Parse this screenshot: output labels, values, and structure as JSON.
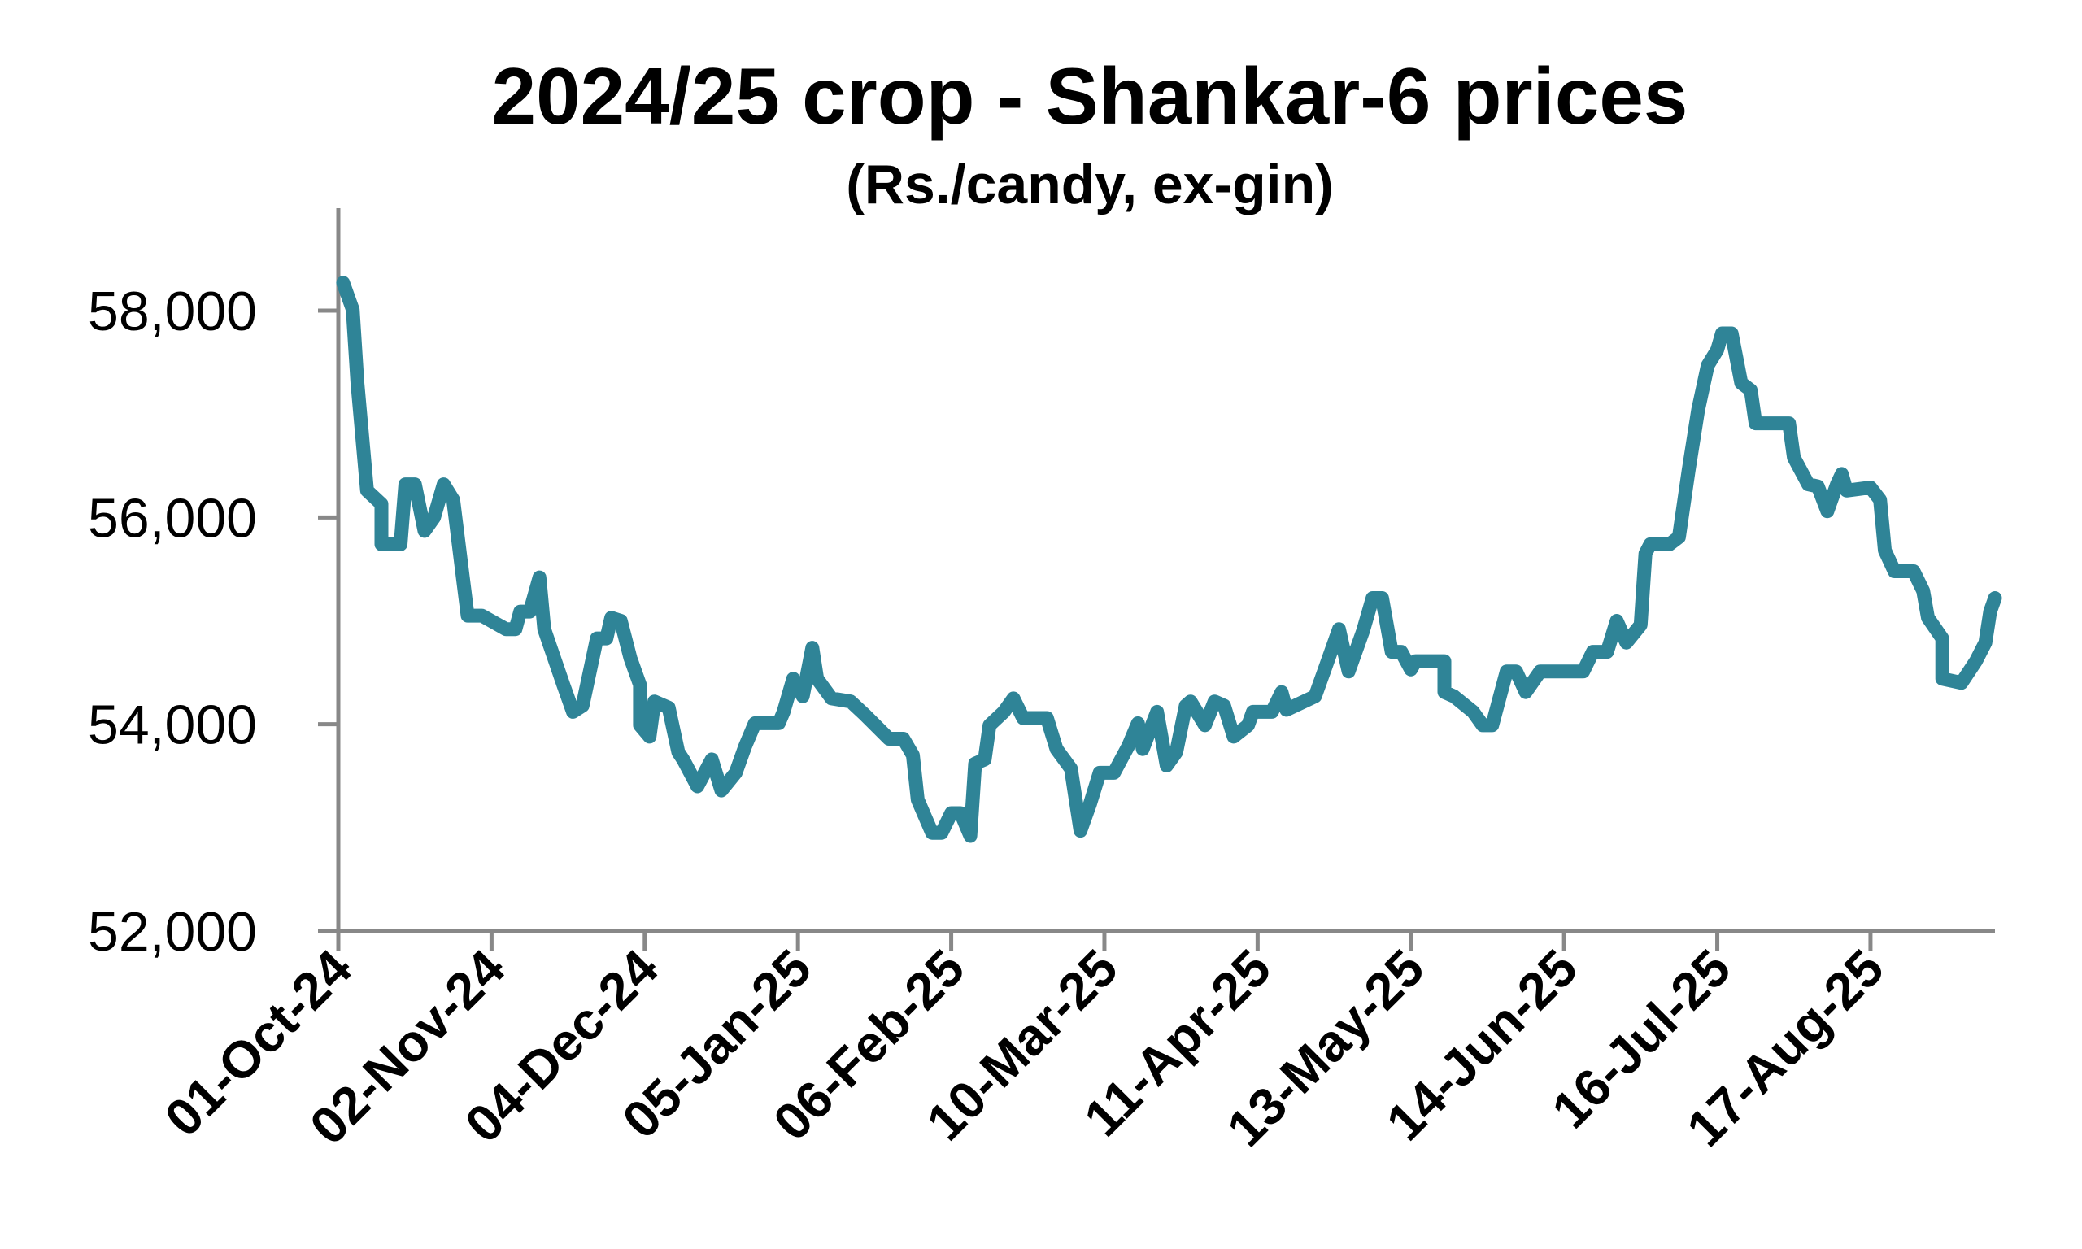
{
  "chart_data": {
    "type": "line",
    "title": "2024/25 crop - Shankar-6 prices",
    "subtitle": "(Rs./candy, ex-gin)",
    "xlabel": "",
    "ylabel": "",
    "ylim": [
      52000,
      58000
    ],
    "yticks": [
      52000,
      54000,
      56000,
      58000
    ],
    "ytick_labels": [
      "52,000",
      "54,000",
      "56,000",
      "58,000"
    ],
    "x_unit": "days since 01-Oct-24",
    "xlim": [
      0,
      346
    ],
    "xticks": [
      0,
      32,
      64,
      96,
      128,
      160,
      192,
      224,
      256,
      288,
      320
    ],
    "xtick_labels": [
      "01-Oct-24",
      "02-Nov-24",
      "04-Dec-24",
      "05-Jan-25",
      "06-Feb-25",
      "10-Mar-25",
      "11-Apr-25",
      "13-May-25",
      "14-Jun-25",
      "16-Jul-25",
      "17-Aug-25"
    ],
    "grid": false,
    "legend": "none",
    "color": "#2f8497",
    "series": [
      {
        "name": "Shankar-6",
        "x": [
          1,
          3,
          4,
          6,
          9,
          9,
          13,
          14,
          16,
          18,
          20,
          22,
          24,
          26,
          27,
          30,
          35,
          37,
          38,
          40,
          42,
          43,
          47,
          49,
          51,
          54,
          56,
          57,
          59,
          61,
          63,
          63,
          65,
          66,
          69,
          71,
          72,
          75,
          78,
          80,
          83,
          85,
          87,
          92,
          93,
          95,
          97,
          99,
          100,
          103,
          107,
          110,
          115,
          118,
          120,
          121,
          124,
          126,
          128,
          130,
          132,
          133,
          135,
          136,
          139,
          141,
          143,
          148,
          150,
          153,
          155,
          157,
          159,
          162,
          165,
          167,
          168,
          171,
          173,
          175,
          177,
          178,
          181,
          183,
          185,
          187,
          190,
          191,
          195,
          197,
          198,
          204,
          206,
          209,
          211,
          214,
          216,
          218,
          220,
          222,
          224,
          225,
          231,
          231,
          233,
          237,
          239,
          241,
          244,
          246,
          248,
          251,
          260,
          262,
          265,
          267,
          269,
          272,
          273,
          274,
          278,
          280,
          282,
          284,
          286,
          288,
          289,
          291,
          293,
          295,
          296,
          303,
          304,
          307,
          309,
          311,
          313,
          314,
          315,
          320,
          322,
          323,
          325,
          329,
          331,
          332,
          335,
          335,
          339,
          342,
          344,
          345,
          346
        ],
        "values": [
          58270,
          58010,
          57300,
          56260,
          56130,
          55740,
          55740,
          56320,
          56320,
          55870,
          56000,
          56320,
          56170,
          55420,
          55050,
          55050,
          54920,
          54920,
          55090,
          55090,
          55420,
          54920,
          54380,
          54120,
          54180,
          54830,
          54830,
          55030,
          55000,
          54640,
          54380,
          53990,
          53880,
          54220,
          54160,
          53730,
          53660,
          53400,
          53660,
          53360,
          53530,
          53790,
          54010,
          54010,
          54120,
          54440,
          54270,
          54740,
          54440,
          54250,
          54220,
          54090,
          53860,
          53860,
          53700,
          53270,
          52950,
          52950,
          53140,
          53140,
          52920,
          53620,
          53660,
          53990,
          54120,
          54250,
          54060,
          54060,
          53760,
          53570,
          52970,
          53230,
          53530,
          53530,
          53790,
          54010,
          53760,
          54120,
          53600,
          53730,
          54180,
          54220,
          53990,
          54220,
          54180,
          53880,
          53990,
          54120,
          54120,
          54310,
          54140,
          54270,
          54530,
          54920,
          54510,
          54900,
          55220,
          55220,
          54700,
          54700,
          54530,
          54610,
          54610,
          54310,
          54270,
          54120,
          53990,
          53990,
          54510,
          54510,
          54310,
          54510,
          54510,
          54700,
          54700,
          55000,
          54790,
          54960,
          55650,
          55740,
          55740,
          55810,
          56450,
          57040,
          57470,
          57620,
          57780,
          57780,
          57300,
          57230,
          56910,
          56910,
          56580,
          56320,
          56300,
          56060,
          56320,
          56420,
          56260,
          56290,
          56170,
          55680,
          55480,
          55480,
          55290,
          55030,
          54830,
          54440,
          54400,
          54610,
          54790,
          55090,
          55220
        ]
      }
    ]
  }
}
